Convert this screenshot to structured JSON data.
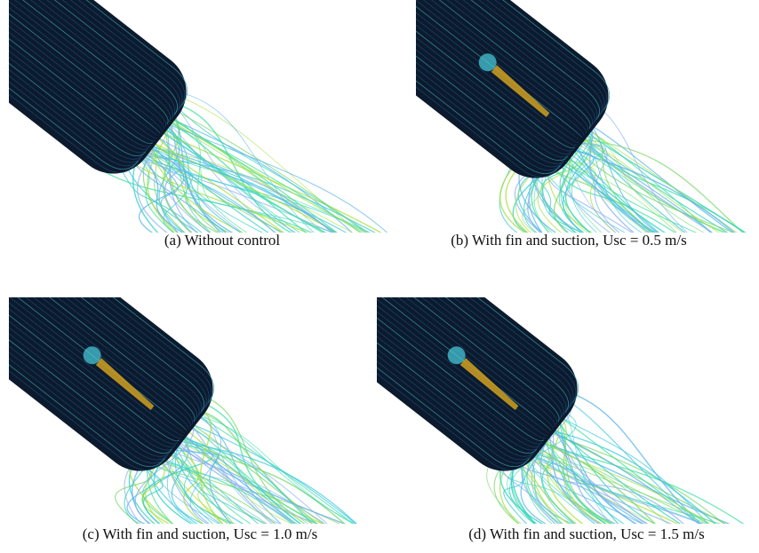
{
  "panels": [
    {
      "caption": "(a) Without control"
    },
    {
      "caption": "(b) With fin and suction, Usc = 0.5 m/s"
    },
    {
      "caption": "(c) With fin and suction, Usc = 1.0 m/s"
    },
    {
      "caption": "(d) With fin and suction, Usc = 1.5 m/s"
    }
  ]
}
